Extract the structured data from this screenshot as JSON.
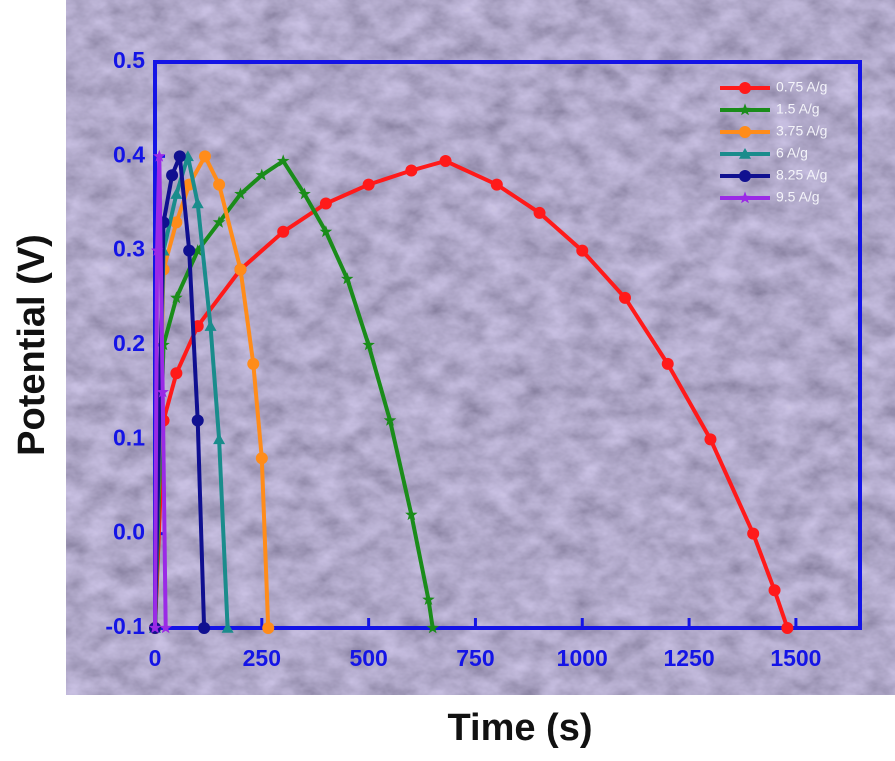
{
  "chart_data": {
    "type": "line",
    "x_label": "Time (s)",
    "y_label": "Potential (V)",
    "xlim": [
      0,
      1650
    ],
    "ylim": [
      -0.1,
      0.5
    ],
    "xticks": [
      0,
      250,
      500,
      750,
      1000,
      1250,
      1500
    ],
    "yticks": [
      -0.1,
      {
        "value": 0,
        "label": "0.0"
      },
      0.1,
      0.2,
      0.3,
      0.4,
      0.5
    ],
    "axis_color": "#1414e6",
    "legend": "upper right",
    "series": [
      {
        "name": "0.75 A/g",
        "color": "#ff1a1a",
        "marker": "circle",
        "x": [
          0,
          20,
          50,
          100,
          200,
          300,
          400,
          500,
          600,
          680,
          800,
          900,
          1000,
          1100,
          1200,
          1300,
          1400,
          1450,
          1480
        ],
        "values": [
          -0.1,
          0.12,
          0.17,
          0.22,
          0.28,
          0.32,
          0.35,
          0.37,
          0.385,
          0.395,
          0.37,
          0.34,
          0.3,
          0.25,
          0.18,
          0.1,
          0.0,
          -0.06,
          -0.1
        ]
      },
      {
        "name": "1.5 A/g",
        "color": "#1a8c1a",
        "marker": "star",
        "x": [
          0,
          20,
          50,
          100,
          150,
          200,
          250,
          300,
          350,
          400,
          450,
          500,
          550,
          600,
          640,
          650
        ],
        "values": [
          -0.1,
          0.2,
          0.25,
          0.3,
          0.33,
          0.36,
          0.38,
          0.395,
          0.36,
          0.32,
          0.27,
          0.2,
          0.12,
          0.02,
          -0.07,
          -0.1
        ]
      },
      {
        "name": "3.75 A/g",
        "color": "#ff8c1a",
        "marker": "circle",
        "x": [
          0,
          20,
          50,
          80,
          117,
          150,
          200,
          230,
          250,
          265
        ],
        "values": [
          -0.1,
          0.28,
          0.33,
          0.37,
          0.4,
          0.37,
          0.28,
          0.18,
          0.08,
          -0.1
        ]
      },
      {
        "name": "6 A/g",
        "color": "#1a8c8c",
        "marker": "triangle",
        "x": [
          0,
          20,
          50,
          77,
          100,
          130,
          150,
          170
        ],
        "values": [
          -0.1,
          0.3,
          0.36,
          0.4,
          0.35,
          0.22,
          0.1,
          -0.1
        ]
      },
      {
        "name": "8.25 A/g",
        "color": "#101090",
        "marker": "circle",
        "x": [
          0,
          20,
          40,
          58,
          80,
          100,
          115
        ],
        "values": [
          -0.1,
          0.33,
          0.38,
          0.4,
          0.3,
          0.12,
          -0.1
        ]
      },
      {
        "name": "9.5 A/g",
        "color": "#9a2ae6",
        "marker": "star",
        "x": [
          0,
          5,
          10,
          18,
          25
        ],
        "values": [
          -0.1,
          0.3,
          0.4,
          0.15,
          -0.1
        ]
      }
    ]
  }
}
